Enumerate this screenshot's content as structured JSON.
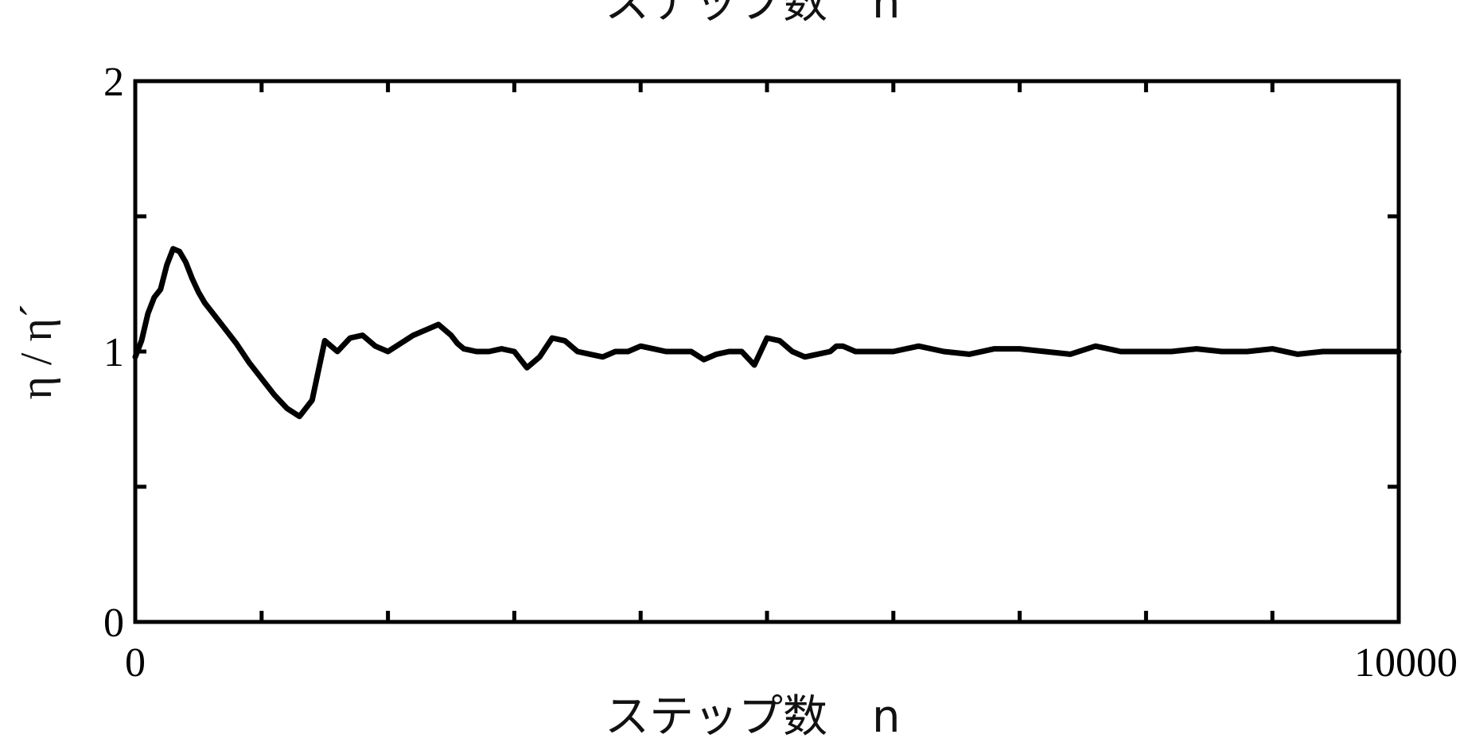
{
  "top_caption": "ステップ数　n",
  "chart_data": {
    "type": "line",
    "xlabel": "ステップ数　n",
    "ylabel": "η / η´",
    "xlim": [
      0,
      10000
    ],
    "ylim": [
      0,
      2
    ],
    "x_tick_labels": [
      "0",
      "10000"
    ],
    "y_tick_labels": [
      "0",
      "1",
      "2"
    ],
    "x_minor_ticks": [
      1000,
      2000,
      3000,
      4000,
      5000,
      6000,
      7000,
      8000,
      9000
    ],
    "y_minor_ticks": [
      0.5,
      1.5
    ],
    "grid": false,
    "series": [
      {
        "x": [
          0,
          50,
          100,
          150,
          200,
          250,
          300,
          350,
          400,
          450,
          500,
          550,
          600,
          650,
          700,
          800,
          900,
          1000,
          1100,
          1200,
          1300,
          1400,
          1500,
          1550,
          1600,
          1700,
          1800,
          1900,
          2000,
          2100,
          2200,
          2300,
          2400,
          2500,
          2550,
          2600,
          2700,
          2800,
          2900,
          3000,
          3100,
          3200,
          3300,
          3400,
          3500,
          3600,
          3700,
          3800,
          3900,
          4000,
          4100,
          4200,
          4300,
          4400,
          4500,
          4600,
          4700,
          4800,
          4900,
          5000,
          5100,
          5200,
          5300,
          5400,
          5500,
          5550,
          5600,
          5700,
          5800,
          5900,
          6000,
          6200,
          6400,
          6600,
          6800,
          7000,
          7200,
          7400,
          7600,
          7800,
          8000,
          8200,
          8400,
          8600,
          8800,
          9000,
          9200,
          9400,
          9600,
          9800,
          10000
        ],
        "y": [
          0.98,
          1.04,
          1.14,
          1.2,
          1.23,
          1.32,
          1.38,
          1.37,
          1.33,
          1.27,
          1.22,
          1.18,
          1.15,
          1.12,
          1.09,
          1.03,
          0.96,
          0.9,
          0.84,
          0.79,
          0.76,
          0.82,
          1.04,
          1.02,
          1.0,
          1.05,
          1.06,
          1.02,
          1.0,
          1.03,
          1.06,
          1.08,
          1.1,
          1.06,
          1.03,
          1.01,
          1.0,
          1.0,
          1.01,
          1.0,
          0.94,
          0.98,
          1.05,
          1.04,
          1.0,
          0.99,
          0.98,
          1.0,
          1.0,
          1.02,
          1.01,
          1.0,
          1.0,
          1.0,
          0.97,
          0.99,
          1.0,
          1.0,
          0.95,
          1.05,
          1.04,
          1.0,
          0.98,
          0.99,
          1.0,
          1.02,
          1.02,
          1.0,
          1.0,
          1.0,
          1.0,
          1.02,
          1.0,
          0.99,
          1.01,
          1.01,
          1.0,
          0.99,
          1.02,
          1.0,
          1.0,
          1.0,
          1.01,
          1.0,
          1.0,
          1.01,
          0.99,
          1.0,
          1.0,
          1.0,
          1.0
        ]
      }
    ]
  }
}
